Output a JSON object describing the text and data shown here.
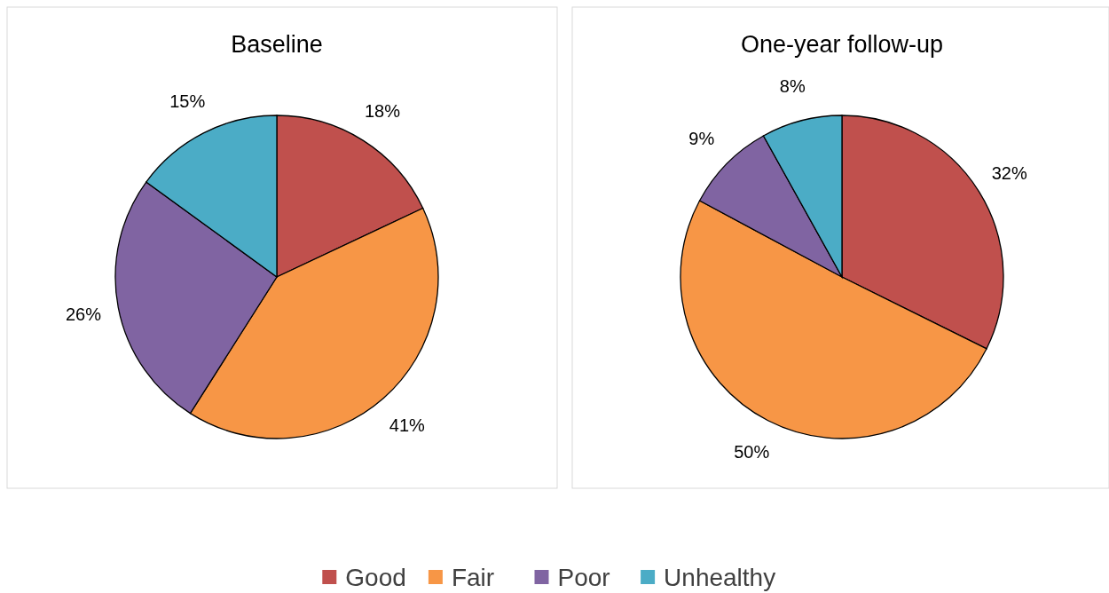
{
  "chart_data": [
    {
      "type": "pie",
      "title": "Baseline",
      "categories": [
        "Good",
        "Fair",
        "Poor",
        "Unhealthy"
      ],
      "values": [
        18,
        41,
        26,
        15
      ],
      "value_labels": [
        "18%",
        "41%",
        "26%",
        "15%"
      ],
      "colors": [
        "#c0504d",
        "#f79646",
        "#8064a2",
        "#4bacc6"
      ],
      "legend": "bottom"
    },
    {
      "type": "pie",
      "title": "One-year follow-up",
      "categories": [
        null,
        null,
        null,
        null
      ],
      "values": [
        32,
        50,
        9,
        8
      ],
      "value_labels": [
        "32%",
        "50%",
        "9%",
        "8%"
      ],
      "colors": [
        "#c0504d",
        "#f79646",
        "#8064a2",
        "#4bacc6"
      ]
    }
  ]
}
